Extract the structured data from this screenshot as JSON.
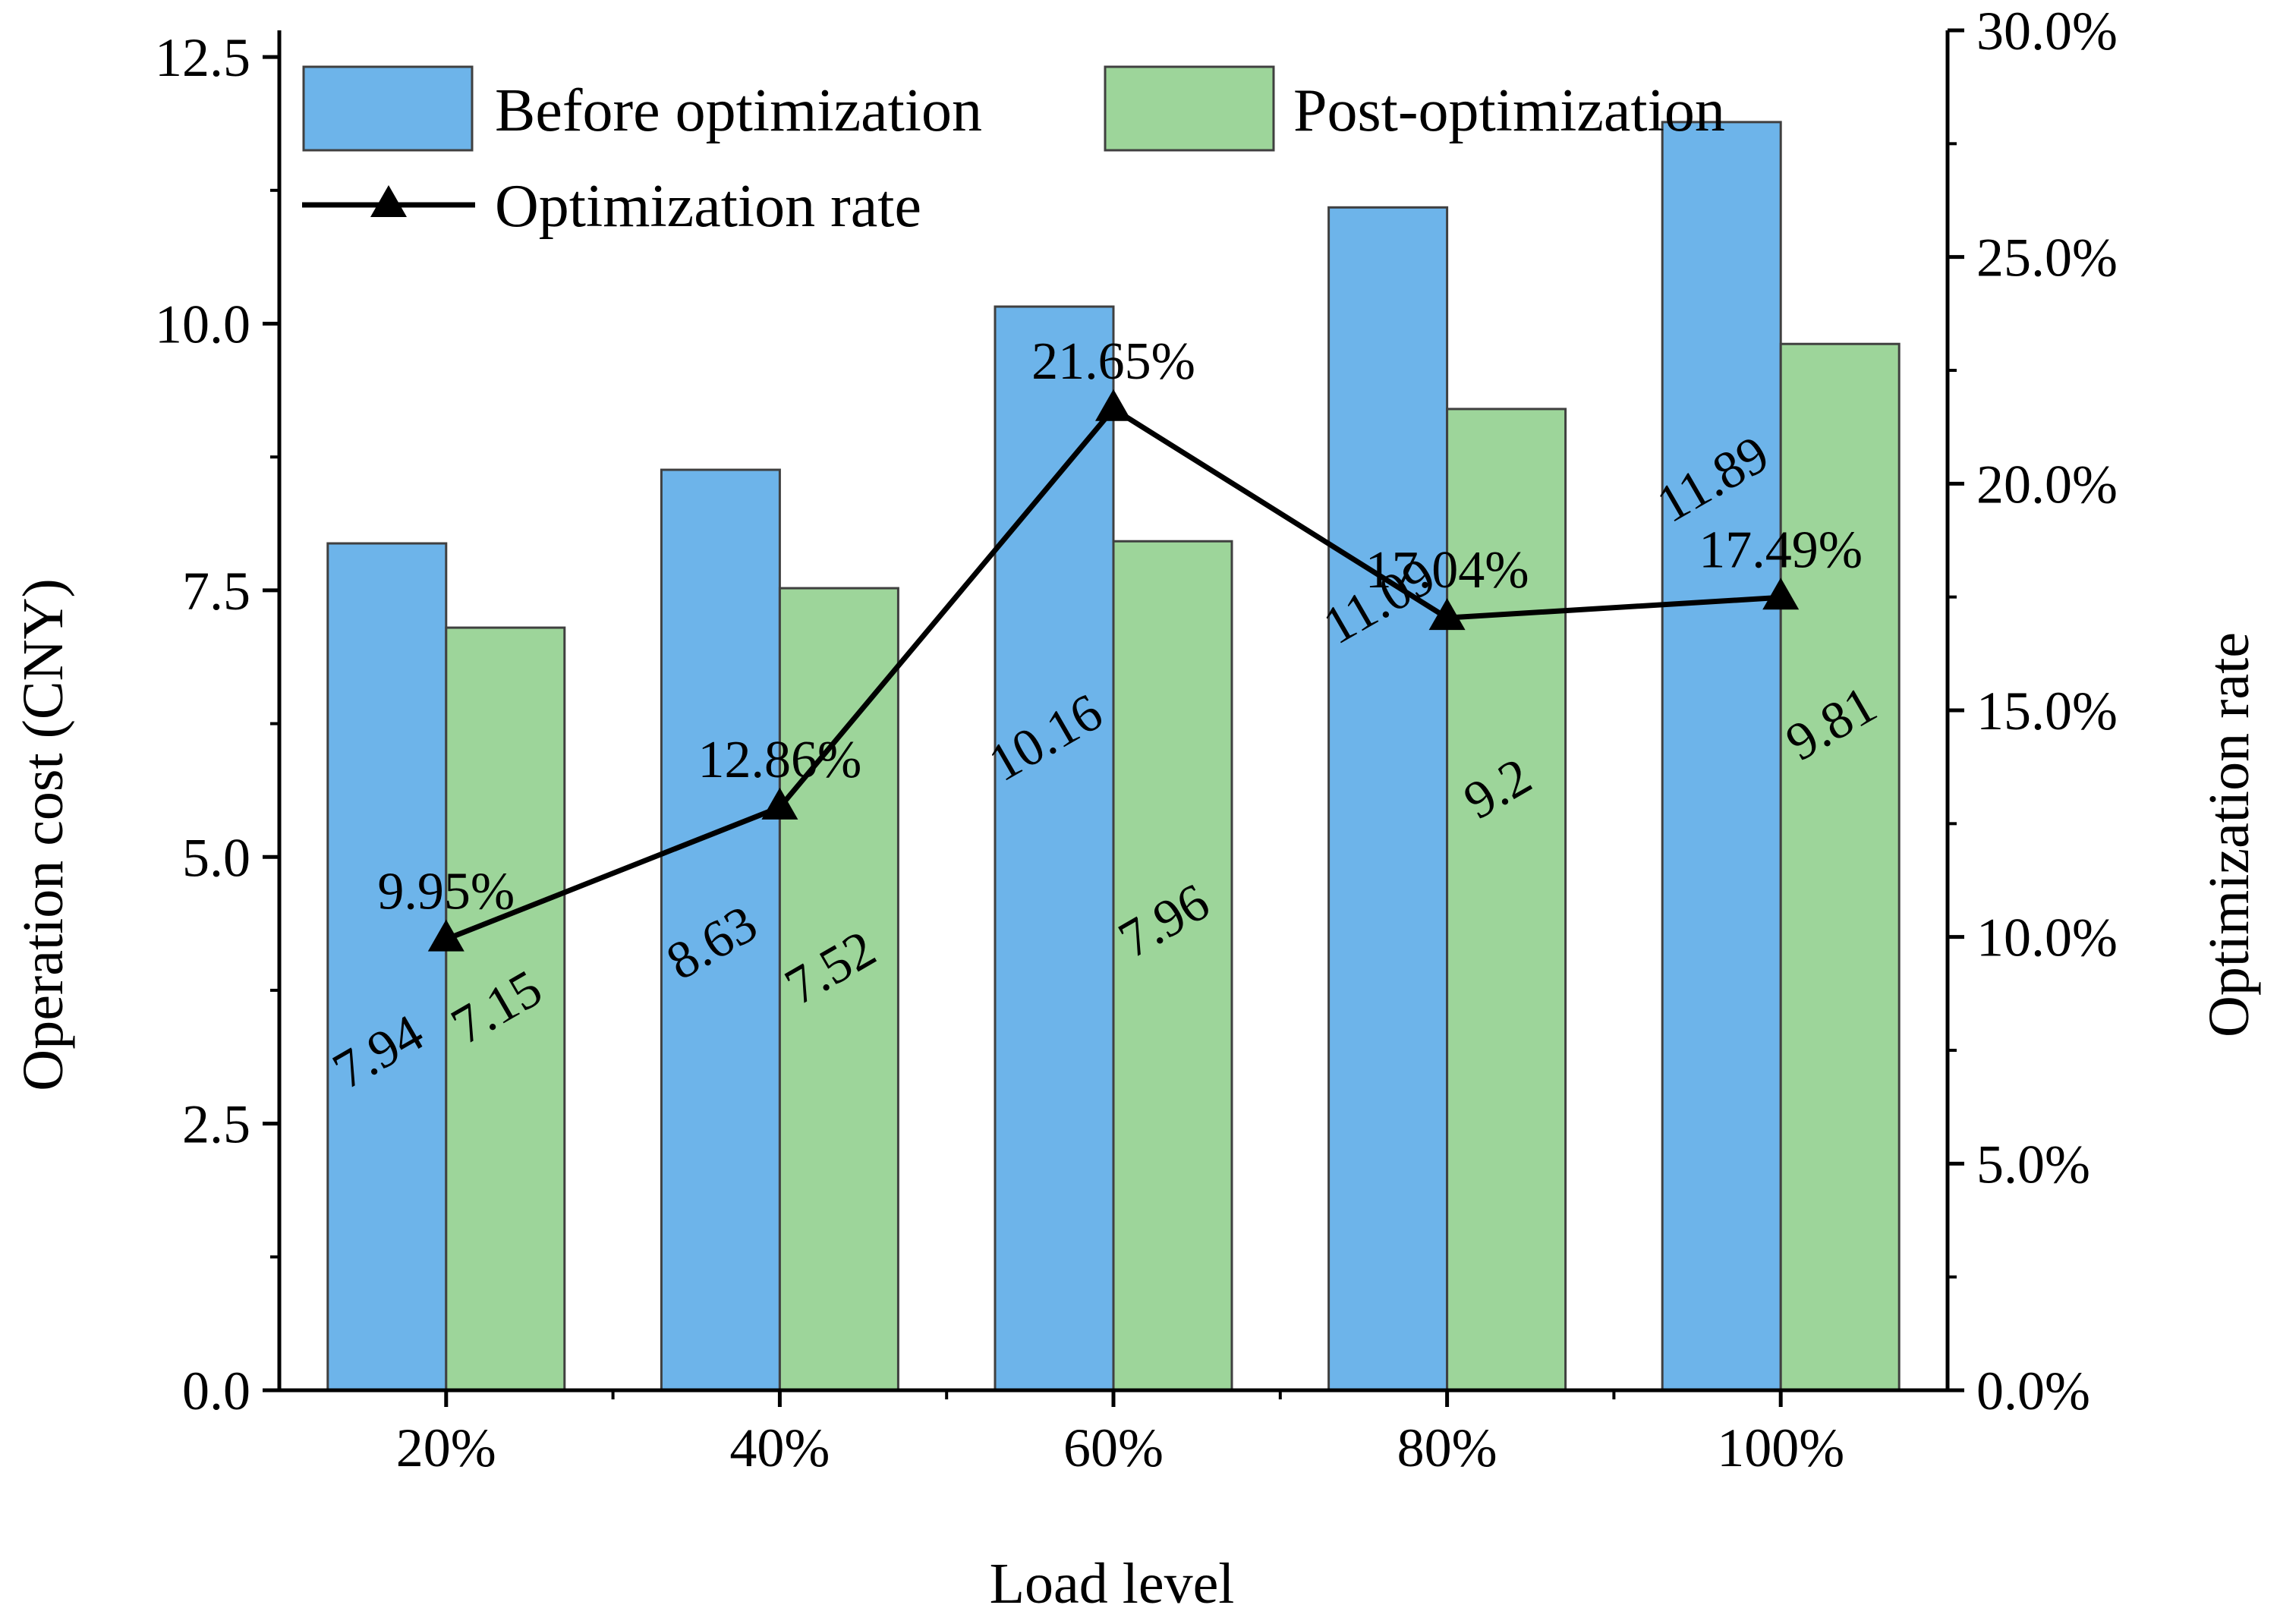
{
  "chart_data": {
    "type": "bar",
    "categories": [
      "20%",
      "40%",
      "60%",
      "80%",
      "100%"
    ],
    "series": [
      {
        "name": "Before optimization",
        "axis": "left",
        "kind": "bar",
        "values": [
          7.94,
          8.63,
          10.16,
          11.09,
          11.89
        ],
        "labels": [
          "7.94",
          "8.63",
          "10.16",
          "11.09",
          "11.89"
        ],
        "color": "#6db4ea"
      },
      {
        "name": "Post-optimization",
        "axis": "left",
        "kind": "bar",
        "values": [
          7.15,
          7.52,
          7.96,
          9.2,
          9.81
        ],
        "labels": [
          "7.15",
          "7.52",
          "7.96",
          "9.2",
          "9.81"
        ],
        "color": "#9dd59a"
      },
      {
        "name": "Optimization rate",
        "axis": "right",
        "kind": "line",
        "marker": "triangle",
        "values": [
          9.95,
          12.86,
          21.65,
          17.04,
          17.49
        ],
        "labels": [
          "9.95%",
          "12.86%",
          "21.65%",
          "17.04%",
          "17.49%"
        ],
        "color": "#000000"
      }
    ],
    "xlabel": "Load level",
    "ylabel": "Operation cost (CNY)",
    "y2label": "Optimization rate",
    "ylim": [
      0,
      12.75
    ],
    "y2lim": [
      0,
      30
    ],
    "yticks": [
      0,
      2.5,
      5,
      7.5,
      10,
      12.5
    ],
    "ytick_labels": [
      "0.0",
      "2.5",
      "5.0",
      "7.5",
      "10.0",
      "12.5"
    ],
    "y2ticks": [
      0,
      5,
      10,
      15,
      20,
      25,
      30
    ],
    "y2tick_labels": [
      "0.0%",
      "5.0%",
      "10.0%",
      "15.0%",
      "20.0%",
      "25.0%",
      "30.0%"
    ],
    "grid": false,
    "legend": "top-left",
    "legend_entries": [
      "Before optimization",
      "Post-optimization",
      "Optimization rate"
    ]
  }
}
